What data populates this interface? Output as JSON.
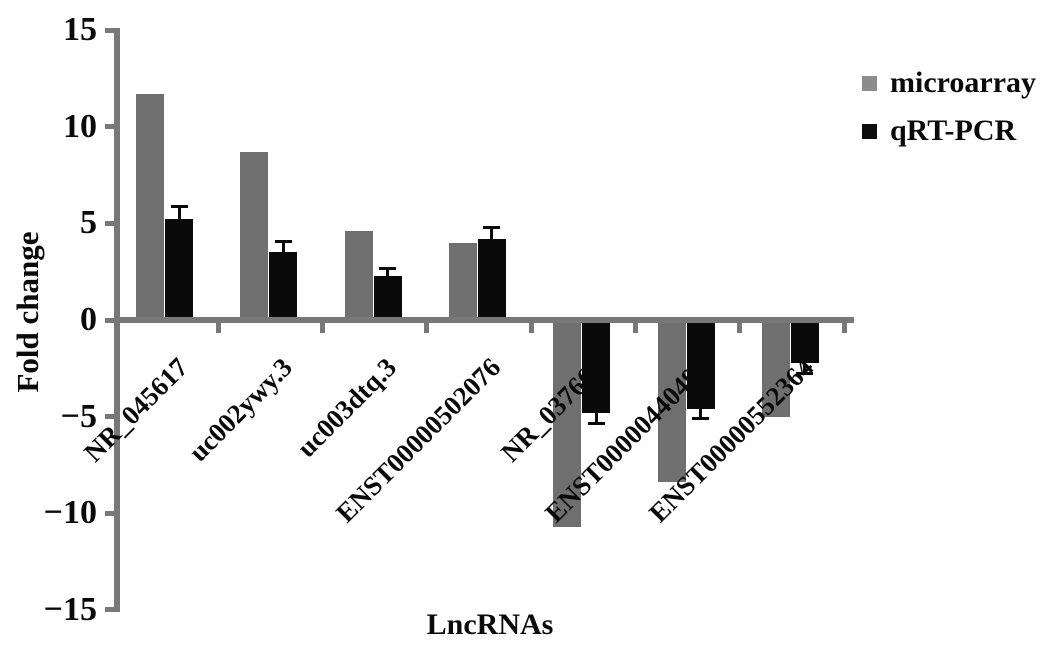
{
  "figure": {
    "title": "",
    "ylabel": "Fold change",
    "xlabel": "LncRNAs"
  },
  "legend": {
    "position": "upper right",
    "items": [
      {
        "label": "microarray",
        "swatch_color": "#8c8c8c"
      },
      {
        "label": "qRT-PCR",
        "swatch_color": "#0d0d0d"
      }
    ]
  },
  "chart_data": {
    "type": "bar",
    "title": "",
    "xlabel": "LncRNAs",
    "ylabel": "Fold change",
    "categories": [
      "NR_045617",
      "uc002ywy.3",
      "uc003dtq.3",
      "ENST00000502076",
      "NR_037661",
      "ENST00000440498",
      "ENST00000552364"
    ],
    "series": [
      {
        "name": "microarray",
        "color": "#6f6f6f",
        "values": [
          11.7,
          8.7,
          4.6,
          4.0,
          -10.7,
          -8.4,
          -5.0
        ]
      },
      {
        "name": "qRT-PCR",
        "color": "#0a0a0a",
        "values": [
          5.2,
          3.5,
          2.3,
          4.2,
          -4.8,
          -4.6,
          -2.2
        ],
        "errors": [
          0.7,
          0.6,
          0.4,
          0.6,
          0.6,
          0.5,
          0.6
        ]
      }
    ],
    "ylim": [
      -15,
      15
    ],
    "yticks": [
      15,
      10,
      5,
      0,
      -5,
      -10,
      -15
    ],
    "ytick_labels": [
      "15",
      "10",
      "5",
      "0",
      "−5",
      "−10",
      "−15"
    ],
    "grid": false,
    "legend_position": "upper right",
    "error_bars_on": "qRT-PCR"
  },
  "colors": {
    "axis": "#787878",
    "background": "#ffffff",
    "bar_gray": "#6f6f6f",
    "bar_black": "#0a0a0a"
  }
}
